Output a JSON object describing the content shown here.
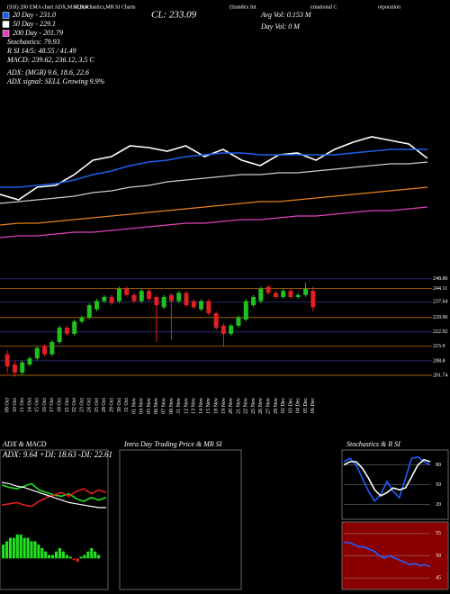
{
  "header": {
    "line1": [
      "(SSI) 200 EMA chart ADX,MACD,R",
      "SI,Stochastics,MR",
      "SI Charts",
      "(Standex Int",
      "ernational C",
      "orporation"
    ],
    "close": "CL: 233.09",
    "legend": [
      {
        "text": "20 Day - 231.0",
        "color": "#1e5ee8"
      },
      {
        "text": "50 Day - 229.1",
        "color": "#ffffff"
      },
      {
        "text": "200 Day - 201.79",
        "color": "#e040c0"
      }
    ],
    "stats": [
      "Stochastics: 79.93",
      "R SI 14/5: 48.55 / 41.49",
      "MACD: 239.62, 236.12, 3.5 C"
    ],
    "adx": [
      "ADX: (MGB) 9.6, 18.6, 22.6",
      "ADX signal: SELL Growing 9.9%"
    ],
    "avg_vol": "Avg Vol: 0.153 M",
    "day_vol": "Day Vol: 0  M",
    "panels": [
      "ADX & MACD",
      "ADX: 9.64 +DI: 18.63 -DI: 22.61",
      "Intra Day Trading Price & MR SI",
      "Stochastics & R SI"
    ]
  },
  "chart_data": [
    {
      "type": "line",
      "ylim": [
        185,
        260
      ],
      "series": [
        {
          "color": "#ffffff",
          "values": [
            217,
            214,
            221,
            222,
            228,
            236,
            238,
            244,
            243,
            241,
            244,
            238,
            242,
            236,
            233,
            239,
            240,
            236,
            242,
            246,
            249,
            247,
            245,
            237
          ]
        },
        {
          "color": "#1e5ee8",
          "values": [
            221,
            221,
            222,
            223,
            225,
            228,
            230,
            233,
            235,
            236,
            238,
            239,
            240,
            240,
            239,
            239,
            239,
            239,
            239,
            240,
            241,
            242,
            242,
            242
          ]
        },
        {
          "color": "#cccccc",
          "values": [
            212,
            213,
            214,
            215,
            216,
            218,
            219,
            221,
            222,
            224,
            225,
            226,
            227,
            228,
            228,
            229,
            229,
            230,
            231,
            232,
            233,
            234,
            234,
            235
          ]
        },
        {
          "color": "#e8801a",
          "values": [
            200,
            201,
            201,
            202,
            203,
            204,
            205,
            206,
            207,
            208,
            209,
            210,
            211,
            212,
            213,
            213,
            214,
            215,
            216,
            217,
            218,
            219,
            220,
            221
          ]
        },
        {
          "color": "#e040c0",
          "values": [
            193,
            194,
            194,
            195,
            196,
            196,
            197,
            198,
            199,
            200,
            201,
            201,
            202,
            203,
            203,
            204,
            205,
            205,
            206,
            207,
            208,
            208,
            209,
            210
          ]
        }
      ]
    },
    {
      "type": "candlestick",
      "ylim": [
        196,
        251
      ],
      "yticks": [
        248.86,
        244.11,
        237.64,
        229.96,
        222.92,
        215.9,
        208.8,
        201.74
      ],
      "up_color": "#20c020",
      "down_color": "#e02020",
      "categories": [
        "09 Oct",
        "10 Oct",
        "11 Oct",
        "14 Oct",
        "15 Oct",
        "16 Oct",
        "17 Oct",
        "18 Oct",
        "21 Oct",
        "22 Oct",
        "23 Oct",
        "24 Oct",
        "25 Oct",
        "28 Oct",
        "29 Oct",
        "30 Oct",
        "31 Oct",
        "01 Nov",
        "04 Nov",
        "05 Nov",
        "06 Nov",
        "07 Nov",
        "08 Nov",
        "11 Nov",
        "12 Nov",
        "13 Nov",
        "14 Nov",
        "15 Nov",
        "18 Nov",
        "19 Nov",
        "20 Nov",
        "21 Nov",
        "22 Nov",
        "25 Nov",
        "26 Nov",
        "27 Nov",
        "29 Nov",
        "02 Dec",
        "03 Dec",
        "04 Dec",
        "05 Dec",
        "06 Dec"
      ],
      "open": [
        212,
        207,
        203,
        207,
        210,
        216,
        212,
        218,
        225,
        222,
        228,
        230,
        234,
        238,
        240,
        238,
        244,
        241,
        238,
        243,
        240,
        235,
        241,
        238,
        242,
        238,
        234,
        238,
        232,
        226,
        222,
        226,
        229,
        236,
        238,
        245,
        242,
        240,
        243,
        240,
        241,
        243
      ],
      "high": [
        214,
        209,
        209,
        211,
        216,
        217,
        219,
        226,
        226,
        229,
        231,
        237,
        239,
        241,
        241,
        245,
        245,
        242,
        244,
        244,
        241,
        241,
        242,
        243,
        243,
        239,
        239,
        239,
        233,
        227,
        227,
        231,
        239,
        241,
        245,
        246,
        243,
        244,
        244,
        242,
        247,
        245
      ],
      "low": [
        203,
        201,
        202,
        206,
        209,
        211,
        211,
        217,
        221,
        221,
        227,
        229,
        233,
        237,
        236,
        237,
        240,
        237,
        237,
        238,
        218,
        234,
        219,
        237,
        235,
        234,
        233,
        231,
        224,
        216,
        221,
        225,
        228,
        235,
        237,
        241,
        239,
        239,
        239,
        239,
        240,
        233
      ],
      "close": [
        206,
        203,
        208,
        210,
        215,
        212,
        218,
        225,
        222,
        228,
        230,
        236,
        238,
        240,
        237,
        244,
        241,
        238,
        243,
        239,
        236,
        240,
        238,
        242,
        236,
        235,
        238,
        232,
        225,
        222,
        226,
        230,
        238,
        240,
        244,
        242,
        240,
        243,
        240,
        241,
        244,
        235
      ]
    },
    {
      "type": "line",
      "ylim": [
        0,
        45
      ],
      "series": [
        {
          "color": "#20e020",
          "values": [
            28,
            26,
            25,
            27,
            29,
            24,
            22,
            20,
            19,
            21,
            17,
            15,
            18,
            16,
            18
          ]
        },
        {
          "color": "#e02020",
          "values": [
            12,
            13,
            14,
            12,
            11,
            15,
            18,
            20,
            22,
            19,
            23,
            25,
            21,
            24,
            22
          ]
        },
        {
          "color": "#ffffff",
          "values": [
            30,
            29,
            27,
            26,
            24,
            22,
            20,
            18,
            16,
            14,
            13,
            12,
            11,
            10,
            10
          ]
        }
      ]
    },
    {
      "type": "bar",
      "ylim": [
        -2,
        8
      ],
      "up_color": "#20e020",
      "down_color": "#e02020",
      "values": [
        4,
        5,
        6,
        6,
        7,
        7,
        6,
        6,
        5,
        5,
        4,
        3,
        2,
        1,
        1,
        2,
        3,
        2,
        1,
        0.5,
        -0.5,
        -1,
        0.5,
        1,
        2,
        3,
        2,
        1
      ]
    },
    {
      "type": "line",
      "ylim": [
        0,
        100
      ],
      "yticks": [
        80,
        50,
        20
      ],
      "series": [
        {
          "color": "#2060ff",
          "values": [
            85,
            90,
            80,
            60,
            40,
            25,
            35,
            55,
            40,
            30,
            60,
            90,
            92,
            85,
            80
          ]
        },
        {
          "color": "#ffffff",
          "values": [
            80,
            85,
            85,
            75,
            60,
            42,
            33,
            38,
            45,
            42,
            45,
            62,
            80,
            88,
            85
          ]
        }
      ]
    },
    {
      "type": "line",
      "ylim": [
        43,
        57
      ],
      "yticks": [
        55,
        50,
        45
      ],
      "series": [
        {
          "color": "#2060ff",
          "values": [
            53,
            53,
            52.5,
            52,
            52,
            51.5,
            51,
            50,
            49.5,
            50,
            49.5,
            49,
            48.5,
            48,
            48.2,
            47.8,
            48,
            47.5
          ]
        }
      ]
    }
  ]
}
